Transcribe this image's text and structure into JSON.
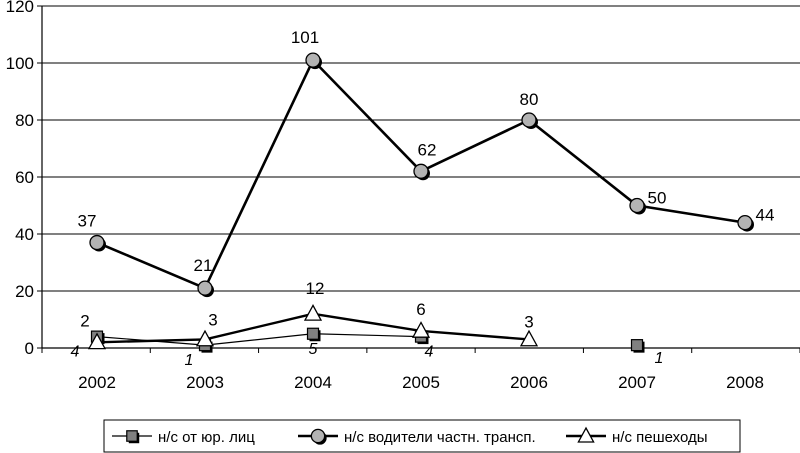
{
  "chart_data": {
    "type": "line",
    "categories": [
      "2002",
      "2003",
      "2004",
      "2005",
      "2006",
      "2007",
      "2008"
    ],
    "ylim": [
      0,
      120
    ],
    "yticks": [
      0,
      20,
      40,
      60,
      80,
      100,
      120
    ],
    "grid": "horizontal",
    "legend_position": "bottom",
    "series": [
      {
        "name": "н/с от юр. лиц",
        "marker": "square",
        "color": "#808080",
        "values": [
          4,
          1,
          5,
          4,
          null,
          1,
          null
        ],
        "labels": [
          "4",
          "1",
          "5",
          "4",
          "",
          "1",
          ""
        ],
        "label_style": "italic-below"
      },
      {
        "name": "н/с водители частн. трансп.",
        "marker": "circle",
        "color": "#b3b3b3",
        "values": [
          37,
          21,
          101,
          62,
          80,
          50,
          44
        ],
        "labels": [
          "37",
          "21",
          "101",
          "62",
          "80",
          "50",
          "44"
        ],
        "label_style": "above"
      },
      {
        "name": "н/с пешеходы",
        "marker": "triangle",
        "color": "#ffffff",
        "values": [
          2,
          3,
          12,
          6,
          3,
          null,
          null
        ],
        "labels": [
          "2",
          "3",
          "12",
          "6",
          "3",
          "",
          ""
        ],
        "label_style": "above"
      }
    ]
  }
}
